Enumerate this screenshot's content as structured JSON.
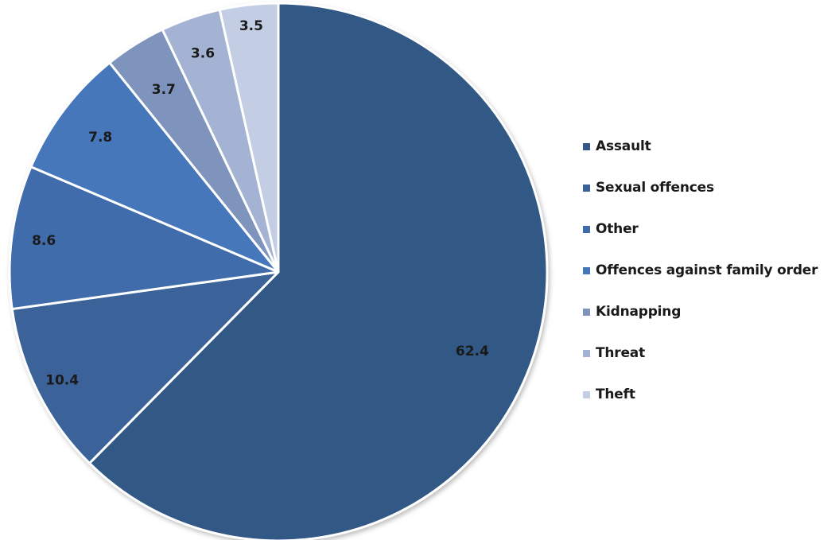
{
  "chart_data": {
    "type": "pie",
    "title": "",
    "slices": [
      {
        "name": "Assault",
        "value": 62.4,
        "label": "62.4",
        "color": "#335885"
      },
      {
        "name": "Sexual offences",
        "value": 10.4,
        "label": "10.4",
        "color": "#3a6299"
      },
      {
        "name": "Other",
        "value": 8.6,
        "label": "8.6",
        "color": "#406cab"
      },
      {
        "name": "Offences against family order",
        "value": 7.8,
        "label": "7.8",
        "color": "#4677bb"
      },
      {
        "name": "Kidnapping",
        "value": 3.7,
        "label": "3.7",
        "color": "#7e94bc"
      },
      {
        "name": "Threat",
        "value": 3.6,
        "label": "3.6",
        "color": "#a4b3d3"
      },
      {
        "name": "Theft",
        "value": 3.5,
        "label": "3.5",
        "color": "#c3cde3"
      }
    ],
    "start_angle": "12 o'clock",
    "direction": "clockwise",
    "legend": {
      "position": "right"
    }
  }
}
